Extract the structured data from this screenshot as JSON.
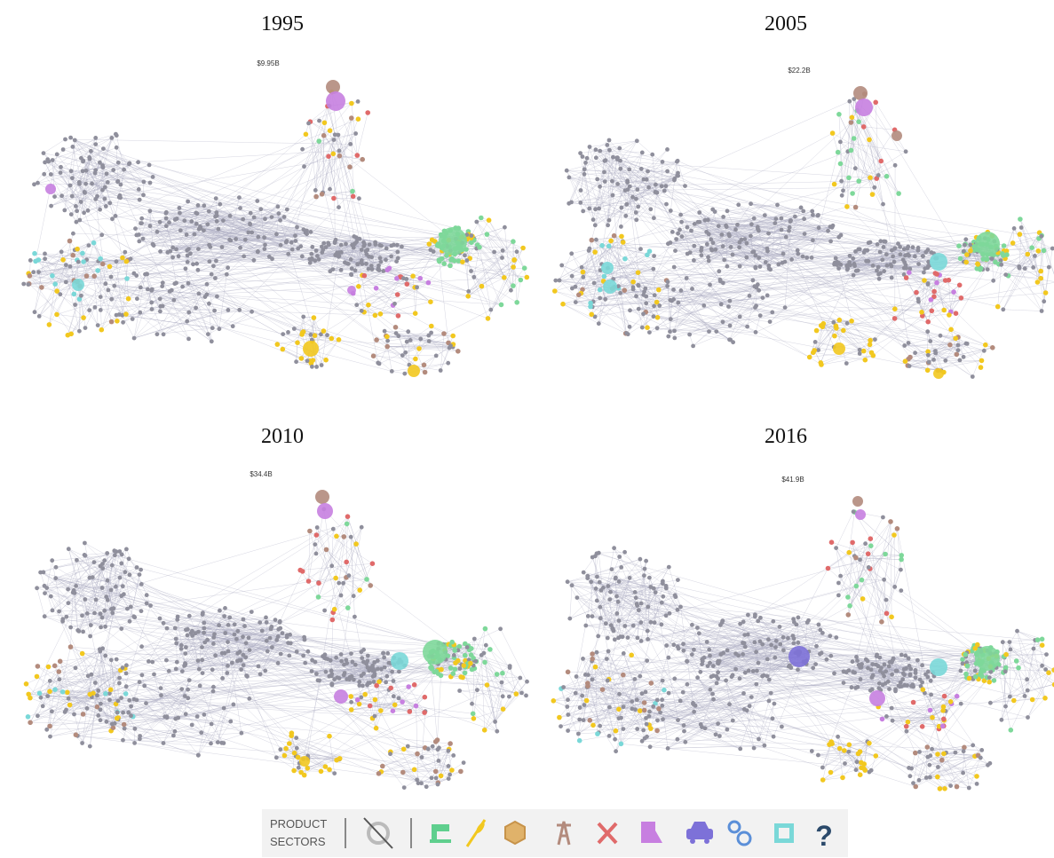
{
  "panels": [
    {
      "year": "1995",
      "total": "$9.95B"
    },
    {
      "year": "2005",
      "total": "$22.2B"
    },
    {
      "year": "2010",
      "total": "$34.4B"
    },
    {
      "year": "2016",
      "total": "$41.9B"
    }
  ],
  "legend": {
    "label_line1": "PRODUCT",
    "label_line2": "SECTORS",
    "help": "?"
  }
}
